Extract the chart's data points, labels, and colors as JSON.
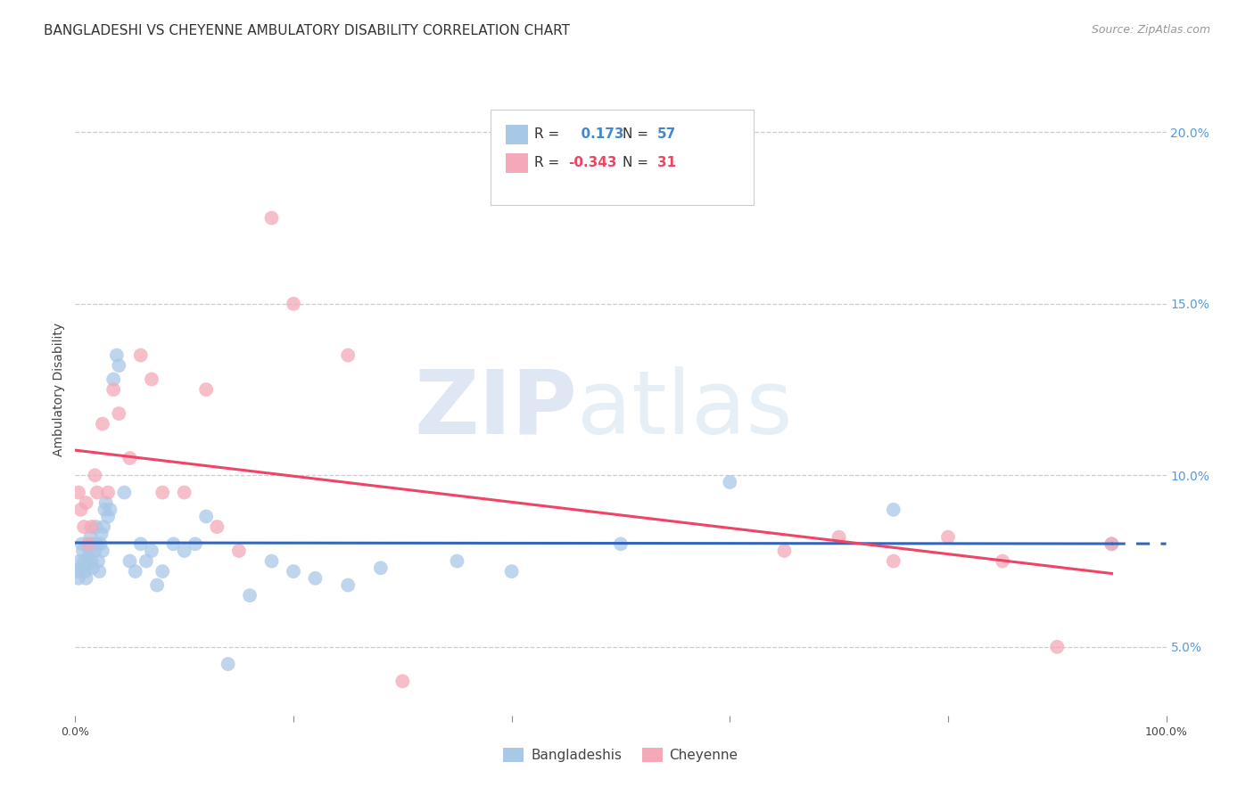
{
  "title": "BANGLADESHI VS CHEYENNE AMBULATORY DISABILITY CORRELATION CHART",
  "source": "Source: ZipAtlas.com",
  "ylabel": "Ambulatory Disability",
  "legend_label_1": "Bangladeshis",
  "legend_label_2": "Cheyenne",
  "R1": 0.173,
  "N1": 57,
  "R2": -0.343,
  "N2": 31,
  "color_blue": "#A8C8E8",
  "color_pink": "#F4A8B8",
  "line_color_blue": "#3366BB",
  "line_color_pink": "#EE4466",
  "blue_scatter_x": [
    0.2,
    0.3,
    0.4,
    0.5,
    0.6,
    0.7,
    0.8,
    0.9,
    1.0,
    1.1,
    1.2,
    1.3,
    1.4,
    1.5,
    1.6,
    1.7,
    1.8,
    1.9,
    2.0,
    2.1,
    2.2,
    2.3,
    2.4,
    2.5,
    2.6,
    2.7,
    2.8,
    3.0,
    3.2,
    3.5,
    3.8,
    4.0,
    4.5,
    5.0,
    5.5,
    6.0,
    6.5,
    7.0,
    7.5,
    8.0,
    9.0,
    10.0,
    11.0,
    12.0,
    14.0,
    16.0,
    18.0,
    20.0,
    22.0,
    25.0,
    28.0,
    35.0,
    40.0,
    50.0,
    60.0,
    75.0,
    95.0
  ],
  "blue_scatter_y": [
    7.2,
    7.0,
    7.5,
    7.3,
    8.0,
    7.8,
    7.5,
    7.2,
    7.0,
    7.4,
    7.6,
    7.8,
    8.2,
    7.5,
    7.3,
    8.0,
    7.8,
    8.5,
    8.0,
    7.5,
    7.2,
    8.0,
    8.3,
    7.8,
    8.5,
    9.0,
    9.2,
    8.8,
    9.0,
    12.8,
    13.5,
    13.2,
    9.5,
    7.5,
    7.2,
    8.0,
    7.5,
    7.8,
    6.8,
    7.2,
    8.0,
    7.8,
    8.0,
    8.8,
    4.5,
    6.5,
    7.5,
    7.2,
    7.0,
    6.8,
    7.3,
    7.5,
    7.2,
    8.0,
    9.8,
    9.0,
    8.0
  ],
  "pink_scatter_x": [
    0.3,
    0.5,
    0.8,
    1.0,
    1.2,
    1.5,
    1.8,
    2.0,
    2.5,
    3.0,
    3.5,
    4.0,
    5.0,
    6.0,
    7.0,
    8.0,
    10.0,
    12.0,
    13.0,
    15.0,
    18.0,
    20.0,
    25.0,
    30.0,
    65.0,
    70.0,
    75.0,
    80.0,
    85.0,
    90.0,
    95.0
  ],
  "pink_scatter_y": [
    9.5,
    9.0,
    8.5,
    9.2,
    8.0,
    8.5,
    10.0,
    9.5,
    11.5,
    9.5,
    12.5,
    11.8,
    10.5,
    13.5,
    12.8,
    9.5,
    9.5,
    12.5,
    8.5,
    7.8,
    17.5,
    15.0,
    13.5,
    4.0,
    7.8,
    8.2,
    7.5,
    8.2,
    7.5,
    5.0,
    8.0
  ],
  "xlim": [
    0,
    100
  ],
  "ylim": [
    3.0,
    22.0
  ],
  "yticks_right": [
    5.0,
    10.0,
    15.0,
    20.0
  ],
  "background_color": "#ffffff",
  "watermark_zip": "ZIP",
  "watermark_atlas": "atlas",
  "title_fontsize": 11,
  "axis_label_fontsize": 10,
  "tick_fontsize": 9,
  "source_fontsize": 9
}
